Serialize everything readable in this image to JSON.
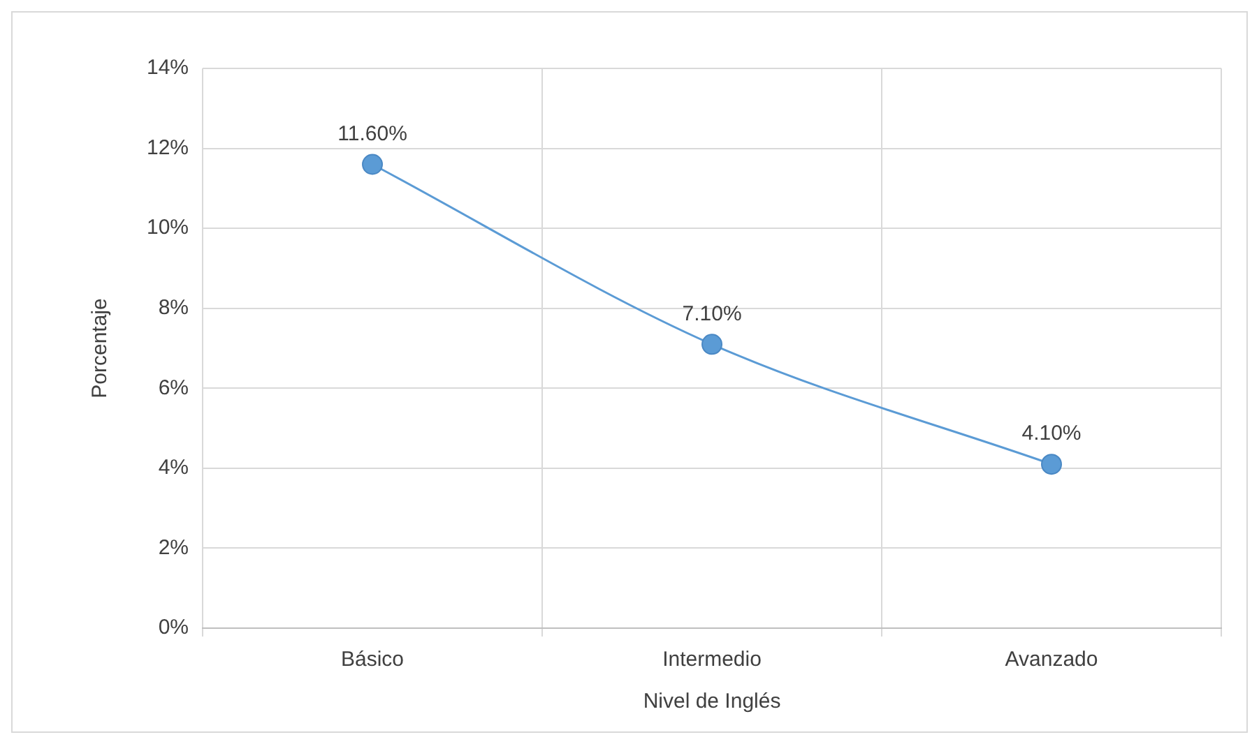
{
  "chart_data": {
    "type": "line",
    "xlabel": "Nivel de Inglés",
    "ylabel": "Porcentaje",
    "categories": [
      "Básico",
      "Intermedio",
      "Avanzado"
    ],
    "series": [
      {
        "color": "#5b9bd5",
        "values": [
          11.6,
          7.1,
          4.1
        ],
        "value_labels": [
          "11.60%",
          "7.10%",
          "4.10%"
        ]
      }
    ],
    "ylim": [
      0,
      14
    ],
    "yticks": [
      {
        "value": 0,
        "label": "0%"
      },
      {
        "value": 2,
        "label": "2%"
      },
      {
        "value": 4,
        "label": "4%"
      },
      {
        "value": 6,
        "label": "6%"
      },
      {
        "value": 8,
        "label": "8%"
      },
      {
        "value": 10,
        "label": "10%"
      },
      {
        "value": 12,
        "label": "12%"
      },
      {
        "value": 14,
        "label": "14%"
      }
    ],
    "grid": true,
    "legend": false,
    "marker": "circle",
    "line_style": "solid"
  }
}
